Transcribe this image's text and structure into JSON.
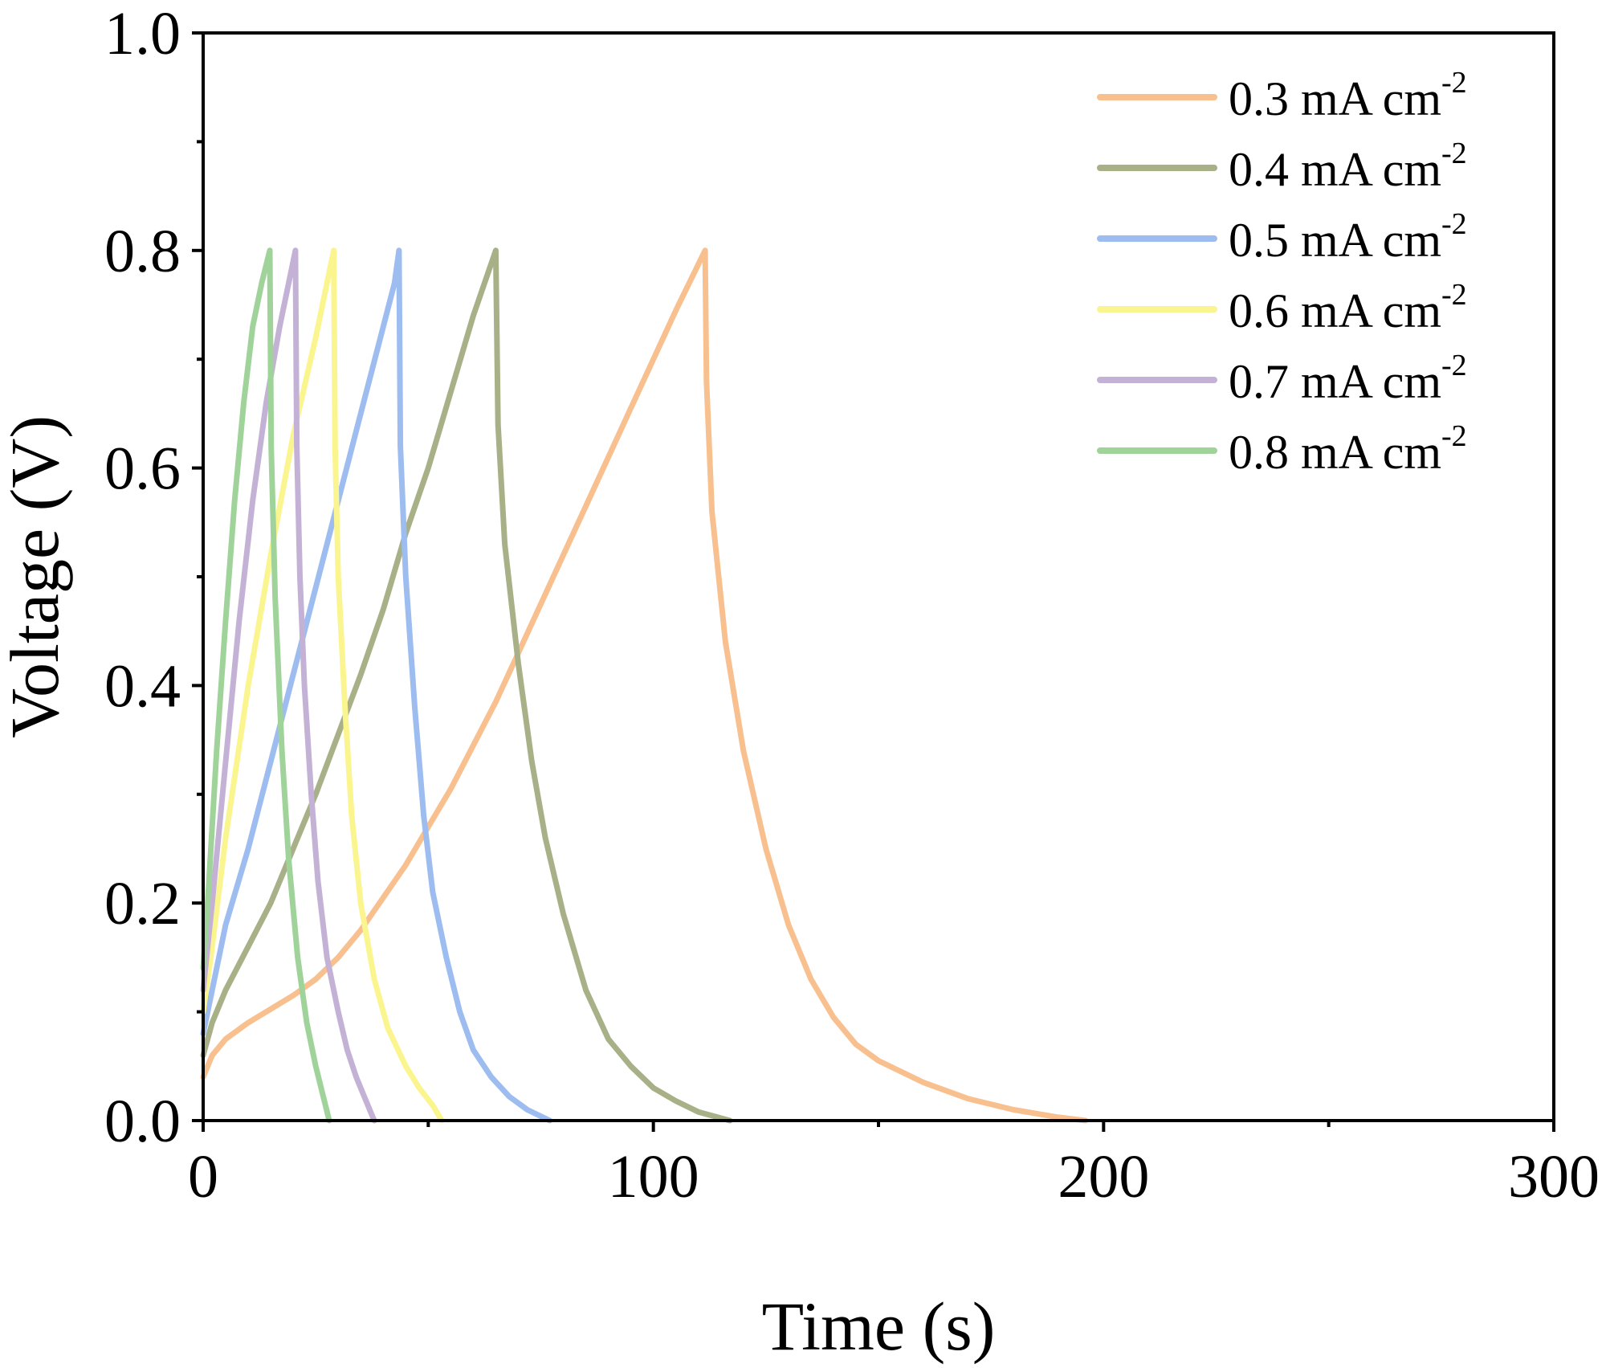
{
  "chart_data": {
    "type": "line",
    "title": "",
    "xlabel": "Time (s)",
    "ylabel": "Voltage (V)",
    "xlim": [
      0,
      300
    ],
    "ylim": [
      0,
      1.0
    ],
    "x_ticks": [
      "0",
      "100",
      "200",
      "300"
    ],
    "y_ticks": [
      "0.0",
      "0.2",
      "0.4",
      "0.6",
      "0.8",
      "1.0"
    ],
    "x_tick_values": [
      0,
      100,
      200,
      300
    ],
    "y_tick_values": [
      0,
      0.2,
      0.4,
      0.6,
      0.8,
      1.0
    ],
    "x_minor_ticks": [
      50,
      150,
      250
    ],
    "y_minor_ticks": [
      0.1,
      0.3,
      0.5,
      0.7,
      0.9
    ],
    "grid": false,
    "legend_position": "top-right",
    "series": [
      {
        "name": "0.3 mA cm-2",
        "label_main": "0.3 mA cm",
        "label_sup": "-2",
        "color": "#f9c08f",
        "points": [
          [
            0,
            0.04
          ],
          [
            2,
            0.06
          ],
          [
            5,
            0.075
          ],
          [
            10,
            0.09
          ],
          [
            20,
            0.115
          ],
          [
            25,
            0.13
          ],
          [
            30,
            0.15
          ],
          [
            35,
            0.175
          ],
          [
            40,
            0.205
          ],
          [
            45,
            0.235
          ],
          [
            50,
            0.27
          ],
          [
            55,
            0.305
          ],
          [
            60,
            0.345
          ],
          [
            65,
            0.385
          ],
          [
            70,
            0.43
          ],
          [
            75,
            0.475
          ],
          [
            80,
            0.52
          ],
          [
            85,
            0.565
          ],
          [
            90,
            0.61
          ],
          [
            95,
            0.655
          ],
          [
            100,
            0.7
          ],
          [
            105,
            0.745
          ],
          [
            111.5,
            0.8
          ],
          [
            111.8,
            0.68
          ],
          [
            113,
            0.56
          ],
          [
            116,
            0.44
          ],
          [
            120,
            0.34
          ],
          [
            125,
            0.25
          ],
          [
            130,
            0.18
          ],
          [
            135,
            0.13
          ],
          [
            140,
            0.095
          ],
          [
            145,
            0.07
          ],
          [
            150,
            0.055
          ],
          [
            160,
            0.035
          ],
          [
            170,
            0.02
          ],
          [
            180,
            0.01
          ],
          [
            190,
            0.003
          ],
          [
            196,
            0.0
          ]
        ]
      },
      {
        "name": "0.4 mA cm-2",
        "label_main": "0.4 mA cm",
        "label_sup": "-2",
        "color": "#a8b088",
        "points": [
          [
            0,
            0.06
          ],
          [
            2,
            0.09
          ],
          [
            5,
            0.12
          ],
          [
            10,
            0.16
          ],
          [
            15,
            0.2
          ],
          [
            20,
            0.25
          ],
          [
            25,
            0.3
          ],
          [
            30,
            0.355
          ],
          [
            35,
            0.41
          ],
          [
            40,
            0.47
          ],
          [
            45,
            0.54
          ],
          [
            50,
            0.6
          ],
          [
            55,
            0.67
          ],
          [
            60,
            0.74
          ],
          [
            65,
            0.8
          ],
          [
            65.5,
            0.64
          ],
          [
            67,
            0.53
          ],
          [
            70,
            0.42
          ],
          [
            73,
            0.33
          ],
          [
            76,
            0.26
          ],
          [
            80,
            0.19
          ],
          [
            85,
            0.12
          ],
          [
            90,
            0.075
          ],
          [
            95,
            0.05
          ],
          [
            100,
            0.03
          ],
          [
            105,
            0.018
          ],
          [
            110,
            0.008
          ],
          [
            117,
            0.0
          ]
        ]
      },
      {
        "name": "0.5 mA cm-2",
        "label_main": "0.5 mA cm",
        "label_sup": "-2",
        "color": "#9dbcef",
        "points": [
          [
            0,
            0.08
          ],
          [
            2,
            0.12
          ],
          [
            5,
            0.18
          ],
          [
            10,
            0.25
          ],
          [
            15,
            0.33
          ],
          [
            20,
            0.41
          ],
          [
            25,
            0.49
          ],
          [
            30,
            0.57
          ],
          [
            35,
            0.65
          ],
          [
            40,
            0.73
          ],
          [
            42.5,
            0.77
          ],
          [
            43.5,
            0.8
          ],
          [
            43.8,
            0.62
          ],
          [
            45,
            0.5
          ],
          [
            47,
            0.38
          ],
          [
            49,
            0.28
          ],
          [
            51,
            0.21
          ],
          [
            54,
            0.15
          ],
          [
            57,
            0.1
          ],
          [
            60,
            0.065
          ],
          [
            64,
            0.04
          ],
          [
            68,
            0.022
          ],
          [
            72,
            0.01
          ],
          [
            77,
            0.0
          ]
        ]
      },
      {
        "name": "0.6 mA cm-2",
        "label_main": "0.6 mA cm",
        "label_sup": "-2",
        "color": "#fbf58f",
        "points": [
          [
            0,
            0.1
          ],
          [
            2,
            0.16
          ],
          [
            5,
            0.26
          ],
          [
            10,
            0.4
          ],
          [
            15,
            0.52
          ],
          [
            20,
            0.63
          ],
          [
            25,
            0.72
          ],
          [
            28,
            0.78
          ],
          [
            29,
            0.8
          ],
          [
            29.3,
            0.62
          ],
          [
            30,
            0.5
          ],
          [
            31.5,
            0.38
          ],
          [
            33,
            0.28
          ],
          [
            35,
            0.2
          ],
          [
            38,
            0.13
          ],
          [
            41,
            0.085
          ],
          [
            45,
            0.05
          ],
          [
            48,
            0.03
          ],
          [
            51,
            0.014
          ],
          [
            53,
            0.0
          ]
        ]
      },
      {
        "name": "0.7 mA cm-2",
        "label_main": "0.7 mA cm",
        "label_sup": "-2",
        "color": "#c4b2d6",
        "points": [
          [
            0,
            0.12
          ],
          [
            2,
            0.2
          ],
          [
            5,
            0.33
          ],
          [
            8,
            0.46
          ],
          [
            11,
            0.57
          ],
          [
            14,
            0.66
          ],
          [
            17,
            0.73
          ],
          [
            19,
            0.77
          ],
          [
            20.5,
            0.8
          ],
          [
            20.8,
            0.62
          ],
          [
            21.5,
            0.5
          ],
          [
            22.5,
            0.4
          ],
          [
            24,
            0.3
          ],
          [
            25.5,
            0.22
          ],
          [
            27.5,
            0.15
          ],
          [
            30,
            0.1
          ],
          [
            32,
            0.065
          ],
          [
            34,
            0.04
          ],
          [
            36,
            0.02
          ],
          [
            37,
            0.01
          ],
          [
            38,
            0.0
          ]
        ]
      },
      {
        "name": "0.8 mA cm-2",
        "label_main": "0.8 mA cm",
        "label_sup": "-2",
        "color": "#9fd39a",
        "points": [
          [
            0,
            0.14
          ],
          [
            1,
            0.2
          ],
          [
            3,
            0.34
          ],
          [
            5,
            0.46
          ],
          [
            7,
            0.57
          ],
          [
            9,
            0.66
          ],
          [
            11,
            0.73
          ],
          [
            13,
            0.77
          ],
          [
            14.8,
            0.8
          ],
          [
            15.1,
            0.62
          ],
          [
            16,
            0.48
          ],
          [
            17.5,
            0.34
          ],
          [
            19,
            0.24
          ],
          [
            21,
            0.15
          ],
          [
            23,
            0.09
          ],
          [
            25,
            0.05
          ],
          [
            26.5,
            0.025
          ],
          [
            28,
            0.0
          ]
        ]
      }
    ]
  }
}
